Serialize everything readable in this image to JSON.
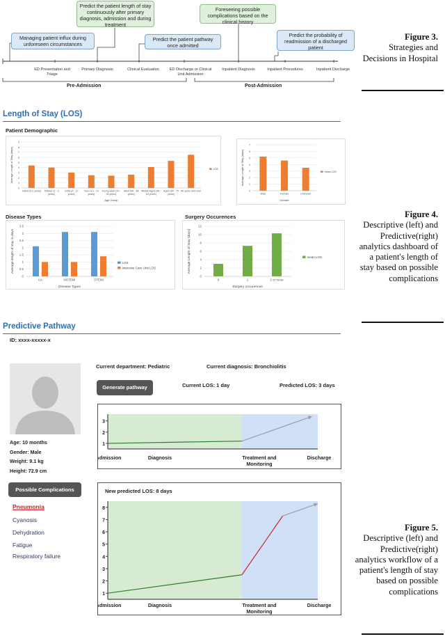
{
  "fig3": {
    "callouts": [
      "Managing patient influx during unforeseen circumstances",
      "Predict the patient length of stay continuously after primary diagnosis, admission and during treatment",
      "Predict the patient pathway once admitted",
      "Foreseeing possible complications based on the clinical history",
      "Predict the probability of readmission of a discharged patient"
    ],
    "stages": [
      "ED Presentation and Triage",
      "Primary Diagnosis",
      "Clinical Evaluation",
      "ED Discharge or Clinical Unit Admission",
      "Inpatient Diagnosis",
      "Inpatient Procedures",
      "Inpatient Discharge"
    ],
    "pre": "Pre-Admission",
    "post": "Post-Admission",
    "caption_label": "Figure 3.",
    "caption_text": "Strategies and Decisions in Hospital"
  },
  "fig4": {
    "section_title": "Length of Stay (LOS)",
    "demographic_title": "Patient Demographic",
    "disease_title": "Disease Types",
    "surgery_title": "Surgery Occurences",
    "caption_label": "Figure 4.",
    "caption_text": "Descriptive (left) and Predictive(right) analytics dashboard of a patient's length of stay based on possible complications"
  },
  "fig5": {
    "section_title": "Predictive Pathway",
    "patient_id": "ID: xxxx-xxxxx-x",
    "department": "Current department: Pediatric",
    "diagnosis": "Current diagnosis: Bronchiolitis",
    "generate_button": "Generate pathway",
    "current_los": "Current LOS: 1 day",
    "predicted_los": "Predicted LOS: 3 days",
    "age": "Age: 10 months",
    "gender": "Gender: Male",
    "weight": "Weight: 9.1 kg",
    "height": "Height: 72.9 cm",
    "complications_button": "Possible Complications",
    "complications": [
      "Pneumonia",
      "Cyanosis",
      "Dehydration",
      "Fatigue",
      "Respiratory failure"
    ],
    "new_predicted": "New predicted LOS: 8 days",
    "stages": [
      "Admission",
      "Diagnosis",
      "Treatment and Monitoring",
      "Discharge"
    ],
    "caption_label": "Figure 5.",
    "caption_text": "Descriptive (left) and Predictive(right) analytics workflow of a patient's length of stay based on possible complications"
  },
  "chart_data": [
    {
      "type": "bar",
      "title": "",
      "categories": [
        "Infant (0-2 years)",
        "Toddler (1 - 3 years)",
        "Child (4 - 12 years)",
        "Teen (13 - 19 years)",
        "Young adult (20 - 35 years)",
        "Adult (36 - 48 years)",
        "Middle Aged (49 - 64 years)",
        "Aged (65 - 79 years)",
        "80 years and over"
      ],
      "values": [
        4.4,
        4.0,
        3.0,
        2.5,
        2.4,
        2.6,
        4.1,
        5.3,
        6.5
      ],
      "xlabel": "Age Group",
      "ylabel": "Average Length of Stay (days)",
      "legend": [
        "LOS"
      ],
      "ylim": [
        0,
        9
      ],
      "yticks": [
        "0",
        "1",
        "2",
        "3",
        "4",
        "5",
        "6",
        "7",
        "8",
        "9"
      ]
    },
    {
      "type": "bar",
      "categories": [
        "Male",
        "Female",
        "Unknown"
      ],
      "values": [
        5.2,
        4.6,
        3.5
      ],
      "xlabel": "Gender",
      "ylabel": "Average Length of Stay (days)",
      "legend": [
        "mean LOS"
      ],
      "ylim": [
        0,
        7
      ],
      "yticks": [
        "0",
        "1",
        "2",
        "3",
        "4",
        "5",
        "6",
        "7"
      ]
    },
    {
      "type": "bar",
      "categories": [
        "UA",
        "NSTEMI",
        "STEMI"
      ],
      "series": [
        {
          "name": "LOS",
          "values": [
            2.1,
            3.1,
            3.1
          ]
        },
        {
          "name": "Intensive Care Unit LOS",
          "values": [
            1.0,
            1.0,
            1.4
          ]
        }
      ],
      "xlabel": "Disease Types",
      "ylabel": "Average length of stay in days",
      "ylim": [
        0,
        3.5
      ],
      "yticks": [
        "0",
        "0.5",
        "1",
        "1.5",
        "2",
        "2.5",
        "3",
        "3.5"
      ]
    },
    {
      "type": "bar",
      "categories": [
        "0",
        "1",
        "2 or more"
      ],
      "values": [
        3,
        7.3,
        10.3
      ],
      "xlabel": "Surgery occurences",
      "ylabel": "Average Length of Stay (days)",
      "legend": [
        "mean LOS"
      ],
      "ylim": [
        0,
        12
      ],
      "yticks": [
        "0",
        "2",
        "4",
        "6",
        "8",
        "10",
        "12"
      ]
    },
    {
      "type": "line",
      "categories": [
        "Admission",
        "Diagnosis",
        "Treatment and Monitoring",
        "Discharge"
      ],
      "series": [
        {
          "name": "current",
          "x": [
            0,
            2.3
          ],
          "values": [
            1,
            1.2
          ]
        },
        {
          "name": "predicted",
          "x": [
            2.3,
            3.5
          ],
          "values": [
            1.2,
            3.4
          ]
        }
      ],
      "ylim": [
        0.5,
        3.6
      ],
      "yticks": [
        "1",
        "2",
        "3"
      ]
    },
    {
      "type": "line",
      "categories": [
        "Admission",
        "Diagnosis",
        "Treatment and Monitoring",
        "Discharge"
      ],
      "series": [
        {
          "name": "current",
          "x": [
            0,
            2.3
          ],
          "values": [
            1,
            2.5
          ]
        },
        {
          "name": "complication",
          "x": [
            2.3,
            3.0
          ],
          "values": [
            2.5,
            7.3
          ]
        },
        {
          "name": "predicted",
          "x": [
            3.0,
            3.6
          ],
          "values": [
            7.3,
            8.3
          ]
        }
      ],
      "ylim": [
        0.5,
        8.5
      ],
      "yticks": [
        "1",
        "2",
        "3",
        "4",
        "5",
        "6",
        "7",
        "8"
      ]
    }
  ]
}
